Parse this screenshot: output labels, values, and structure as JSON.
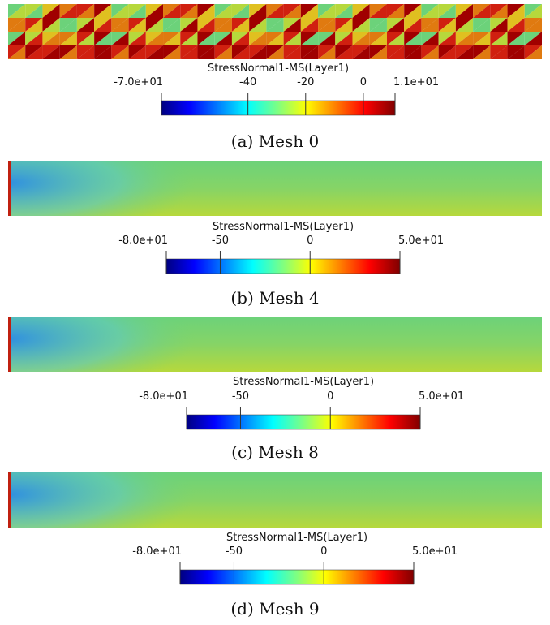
{
  "panels": [
    {
      "caption": "(a) Mesh 0",
      "colorbar": {
        "title": "StressNormal1-MS(Layer1)",
        "range": [
          -70,
          11
        ],
        "ticks": [
          {
            "value": -70,
            "label": "-7.0e+01"
          },
          -40,
          -20,
          0,
          {
            "value": 11,
            "label": "1.1e+01"
          }
        ]
      }
    },
    {
      "caption": "(b) Mesh 4",
      "colorbar": {
        "title": "StressNormal1-MS(Layer1)",
        "range": [
          -80,
          50
        ],
        "ticks": [
          {
            "value": -80,
            "label": "-8.0e+01"
          },
          -50,
          0,
          {
            "value": 50,
            "label": "5.0e+01"
          }
        ]
      }
    },
    {
      "caption": "(c) Mesh 8",
      "colorbar": {
        "title": "StressNormal1-MS(Layer1)",
        "range": [
          -80,
          50
        ],
        "ticks": [
          {
            "value": -80,
            "label": "-8.0e+01"
          },
          -50,
          0,
          {
            "value": 50,
            "label": "5.0e+01"
          }
        ]
      }
    },
    {
      "caption": "(d) Mesh 9",
      "colorbar": {
        "title": "StressNormal1-MS(Layer1)",
        "range": [
          -80,
          50
        ],
        "ticks": [
          {
            "value": -80,
            "label": "-8.0e+01"
          },
          -50,
          0,
          {
            "value": 50,
            "label": "5.0e+01"
          }
        ]
      }
    }
  ]
}
